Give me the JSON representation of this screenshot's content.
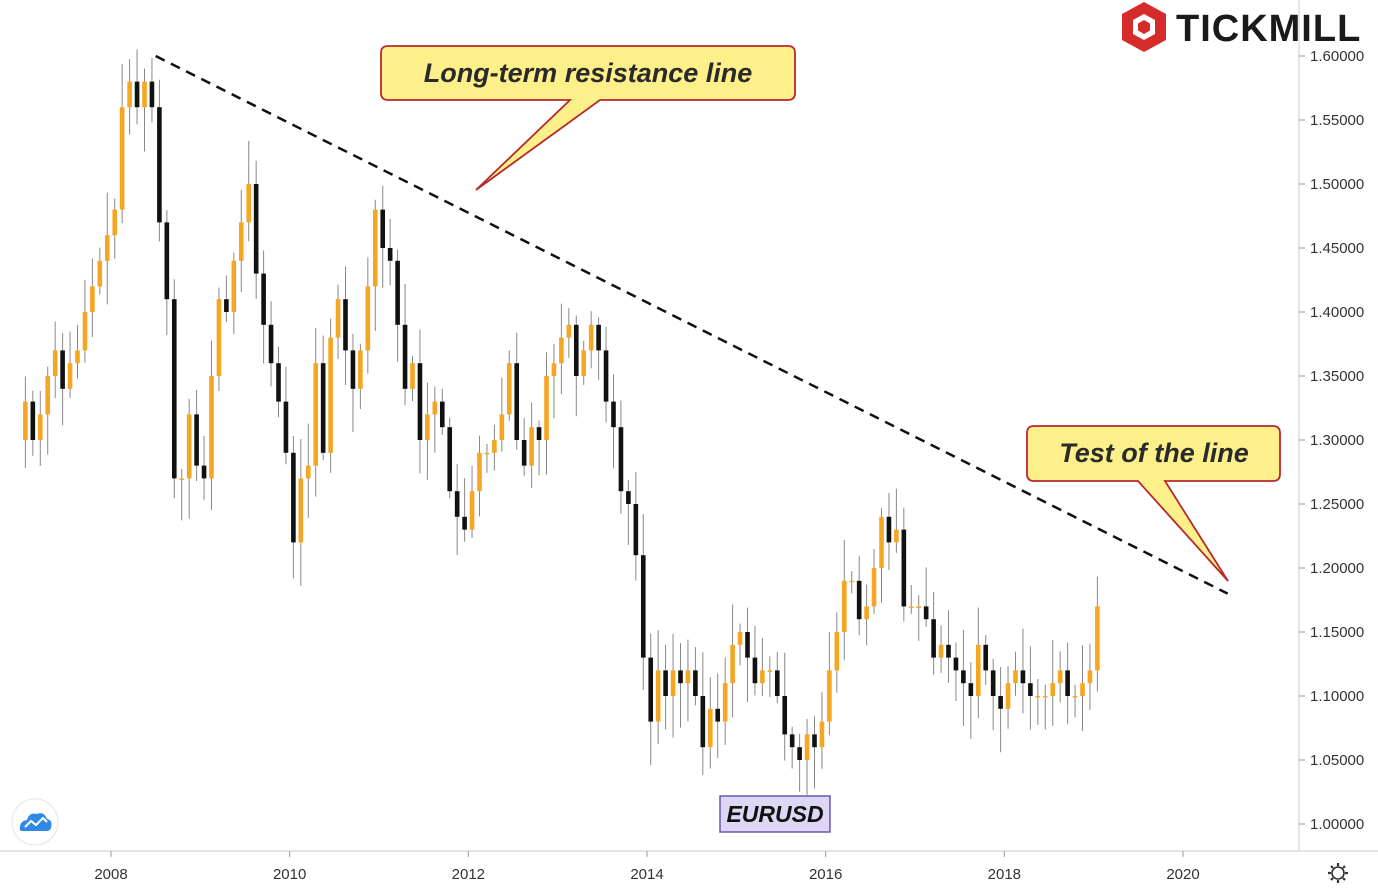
{
  "brand": {
    "name": "TICKMILL",
    "logo_color": "#d62b2b"
  },
  "symbol_label": "EURUSD",
  "colors": {
    "up": "#f5a623",
    "down": "#111111",
    "wick": "#888888",
    "trendline": "#111111",
    "callout_fill": "#fdf08a",
    "callout_border": "#b8282d",
    "symbol_fill": "#ddd6f5",
    "symbol_border": "#6a56b5"
  },
  "chart_data": {
    "type": "candlestick",
    "timeframe": "monthly",
    "symbol": "EURUSD",
    "xlim": [
      2007.0,
      2020.9
    ],
    "ylim": [
      0.965,
      1.63
    ],
    "x_ticks": [
      2008,
      2010,
      2012,
      2014,
      2016,
      2018,
      2020
    ],
    "x_tick_labels": [
      "2008",
      "2010",
      "2012",
      "2014",
      "2016",
      "2018",
      "2020"
    ],
    "y_ticks": [
      1.0,
      1.05,
      1.1,
      1.15,
      1.2,
      1.25,
      1.3,
      1.35,
      1.4,
      1.45,
      1.5,
      1.55,
      1.6
    ],
    "y_tick_labels": [
      "1.00000",
      "1.05000",
      "1.10000",
      "1.15000",
      "1.20000",
      "1.25000",
      "1.30000",
      "1.35000",
      "1.40000",
      "1.45000",
      "1.50000",
      "1.55000",
      "1.60000"
    ],
    "key_points": [
      {
        "date": "2008-07",
        "close": 1.58,
        "high": 1.6
      },
      {
        "date": "2009-03",
        "close": 1.27,
        "low": 1.23
      },
      {
        "date": "2009-11",
        "close": 1.5,
        "high": 1.51
      },
      {
        "date": "2010-06",
        "close": 1.22,
        "low": 1.19
      },
      {
        "date": "2011-04",
        "close": 1.48,
        "high": 1.49
      },
      {
        "date": "2012-07",
        "close": 1.23,
        "low": 1.2
      },
      {
        "date": "2014-04",
        "close": 1.38,
        "high": 1.4
      },
      {
        "date": "2015-03",
        "close": 1.08,
        "low": 1.05
      },
      {
        "date": "2016-12",
        "close": 1.05,
        "low": 1.035
      },
      {
        "date": "2018-01",
        "close": 1.24,
        "high": 1.255
      },
      {
        "date": "2020-02",
        "close": 1.1,
        "low": 1.065
      },
      {
        "date": "2020-06",
        "close": 1.17,
        "high": 1.178
      }
    ],
    "closes": [
      1.33,
      1.3,
      1.32,
      1.35,
      1.37,
      1.34,
      1.36,
      1.37,
      1.4,
      1.42,
      1.44,
      1.46,
      1.48,
      1.56,
      1.58,
      1.56,
      1.58,
      1.56,
      1.47,
      1.41,
      1.27,
      1.27,
      1.32,
      1.28,
      1.27,
      1.35,
      1.41,
      1.4,
      1.44,
      1.47,
      1.5,
      1.43,
      1.39,
      1.36,
      1.33,
      1.29,
      1.22,
      1.27,
      1.28,
      1.36,
      1.29,
      1.38,
      1.41,
      1.37,
      1.34,
      1.37,
      1.42,
      1.48,
      1.45,
      1.44,
      1.39,
      1.34,
      1.36,
      1.3,
      1.32,
      1.33,
      1.31,
      1.26,
      1.24,
      1.23,
      1.26,
      1.29,
      1.29,
      1.3,
      1.32,
      1.36,
      1.3,
      1.28,
      1.31,
      1.3,
      1.35,
      1.36,
      1.38,
      1.39,
      1.35,
      1.37,
      1.39,
      1.37,
      1.33,
      1.31,
      1.26,
      1.25,
      1.21,
      1.13,
      1.08,
      1.12,
      1.1,
      1.12,
      1.11,
      1.12,
      1.1,
      1.06,
      1.09,
      1.08,
      1.11,
      1.14,
      1.15,
      1.13,
      1.11,
      1.12,
      1.12,
      1.1,
      1.07,
      1.06,
      1.05,
      1.07,
      1.06,
      1.08,
      1.12,
      1.15,
      1.19,
      1.19,
      1.16,
      1.17,
      1.2,
      1.24,
      1.22,
      1.23,
      1.17,
      1.17,
      1.17,
      1.16,
      1.13,
      1.14,
      1.13,
      1.12,
      1.11,
      1.1,
      1.14,
      1.12,
      1.1,
      1.09,
      1.11,
      1.12,
      1.11,
      1.1,
      1.1,
      1.1,
      1.11,
      1.12,
      1.1,
      1.1,
      1.11,
      1.12,
      1.17
    ]
  },
  "annotations": {
    "trendline": {
      "start": {
        "x": 2008.5,
        "y": 1.6
      },
      "end": {
        "x": 2020.5,
        "y": 1.18
      }
    },
    "callouts": [
      {
        "text": "Long-term resistance line",
        "target": {
          "x": 2011.2,
          "y": 1.495
        }
      },
      {
        "text": "Test of the line",
        "target": {
          "x": 2020.5,
          "y": 1.19
        }
      }
    ]
  },
  "icons": {
    "tradingview": "tradingview-cloud-icon",
    "settings": "gear-icon",
    "brand_logo": "tickmill-hexagon-logo-icon"
  }
}
